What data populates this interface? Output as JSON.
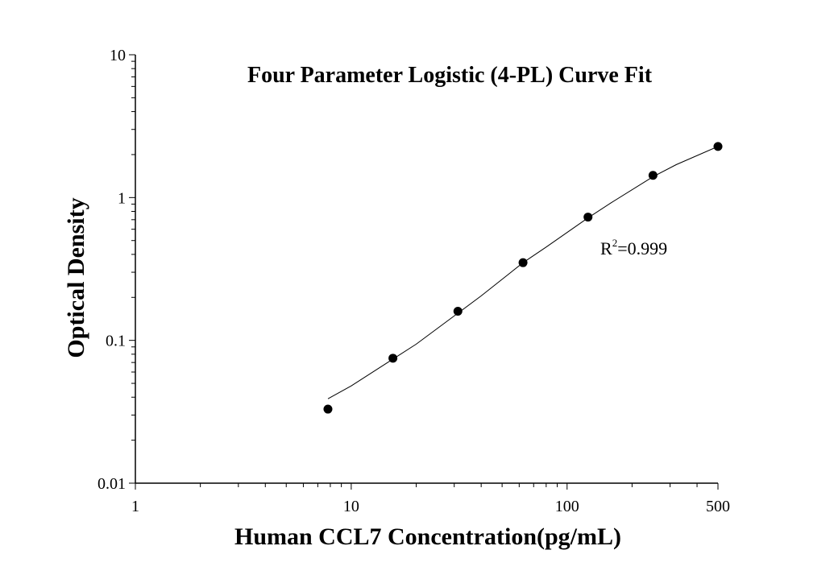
{
  "chart_data": {
    "type": "scatter",
    "title": "Four Parameter Logistic (4-PL) Curve Fit",
    "xlabel": "Human CCL7 Concentration(pg/mL)",
    "ylabel": "Optical Density",
    "xscale": "log",
    "yscale": "log",
    "xlim": [
      1,
      500
    ],
    "ylim": [
      0.01,
      10
    ],
    "xticks": [
      1,
      10,
      100,
      500
    ],
    "xtick_labels": [
      "1",
      "10",
      "100",
      "500"
    ],
    "yticks": [
      0.01,
      0.1,
      1,
      10
    ],
    "ytick_labels": [
      "0.01",
      "0.1",
      "1",
      "10"
    ],
    "grid": false,
    "series": [
      {
        "x": [
          7.8,
          15.6,
          31.2,
          62.5,
          125,
          250,
          500
        ],
        "y": [
          0.033,
          0.075,
          0.16,
          0.35,
          0.73,
          1.43,
          2.28
        ]
      }
    ],
    "fit_curve": {
      "x": [
        7.8,
        10,
        15.6,
        20,
        31.2,
        40,
        62.5,
        80,
        125,
        160,
        250,
        320,
        500
      ],
      "y": [
        0.039,
        0.048,
        0.074,
        0.094,
        0.155,
        0.205,
        0.35,
        0.45,
        0.72,
        0.92,
        1.4,
        1.7,
        2.28
      ]
    },
    "annotation": {
      "base": "R",
      "sup": "2",
      "rest": "=0.999"
    },
    "colors": {
      "marker": "#000000",
      "line": "#000000",
      "axis": "#000000"
    }
  }
}
